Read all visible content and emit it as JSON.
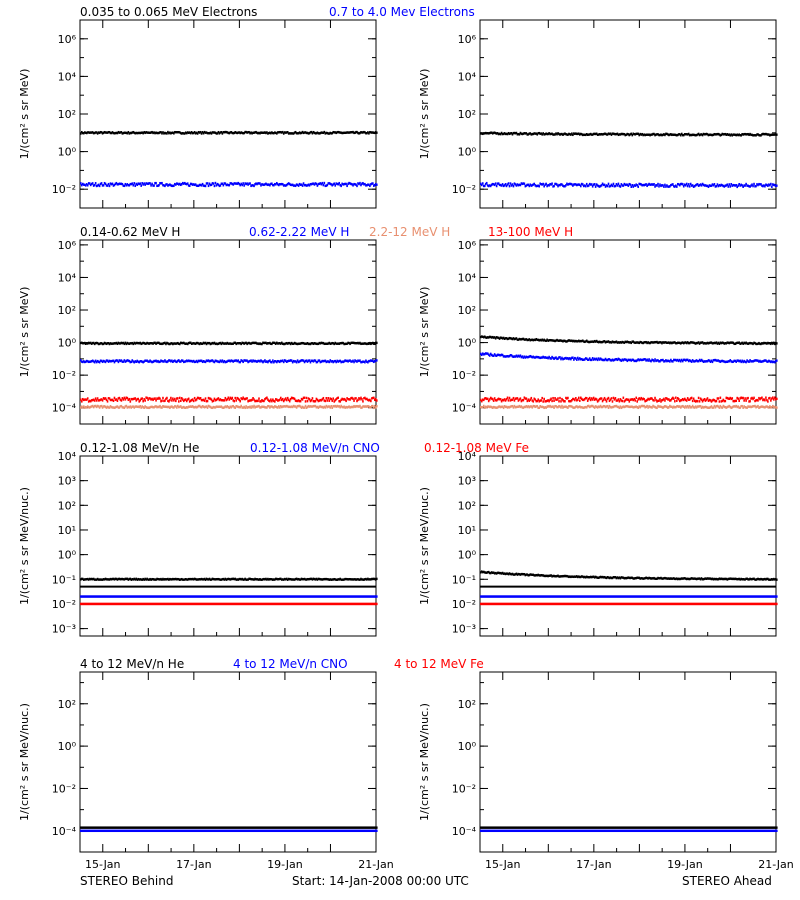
{
  "footer": {
    "left": "STEREO Behind",
    "center": "Start: 14-Jan-2008 00:00 UTC",
    "right": "STEREO Ahead"
  },
  "colors": {
    "black": "#000000",
    "blue": "#0000ff",
    "salmon": "#e89070",
    "red": "#ff0000"
  },
  "chart_data": [
    {
      "id": "electrons",
      "type": "scatter",
      "log_y": true,
      "ylim_exp": [
        -3,
        7
      ],
      "ylabel": "1/(cm² s sr MeV)",
      "yticks": [
        {
          "exp": -2,
          "label": "10⁻²"
        },
        {
          "exp": 0,
          "label": "10⁰"
        },
        {
          "exp": 2,
          "label": "10²"
        },
        {
          "exp": 4,
          "label": "10⁴"
        },
        {
          "exp": 6,
          "label": "10⁶"
        }
      ],
      "legend": [
        {
          "text": "0.035 to 0.065 MeV Electrons",
          "color": "#000000"
        },
        {
          "text": "0.7 to 4.0 Mev Electrons",
          "color": "#0000ff"
        }
      ],
      "series": [
        {
          "name": "0.035 to 0.065 MeV Electrons",
          "color": "#000000",
          "left": [
            1.0,
            1.0
          ],
          "right": [
            0.98,
            0.9
          ],
          "scatter": 0.04
        },
        {
          "name": "0.7 to 4.0 Mev Electrons",
          "color": "#0000ff",
          "left": [
            -1.75,
            -1.75
          ],
          "right": [
            -1.75,
            -1.8
          ],
          "scatter": 0.08
        }
      ]
    },
    {
      "id": "protons",
      "type": "scatter",
      "log_y": true,
      "ylim_exp": [
        -5,
        6.3
      ],
      "ylabel": "1/(cm² s sr MeV)",
      "yticks": [
        {
          "exp": -4,
          "label": "10⁻⁴"
        },
        {
          "exp": -2,
          "label": "10⁻²"
        },
        {
          "exp": 0,
          "label": "10⁰"
        },
        {
          "exp": 2,
          "label": "10²"
        },
        {
          "exp": 4,
          "label": "10⁴"
        },
        {
          "exp": 6,
          "label": "10⁶"
        }
      ],
      "legend": [
        {
          "text": "0.14-0.62 MeV H",
          "color": "#000000"
        },
        {
          "text": "0.62-2.22 MeV H",
          "color": "#0000ff"
        },
        {
          "text": "2.2-12 MeV H",
          "color": "#e89070"
        },
        {
          "text": "13-100 MeV H",
          "color": "#ff0000"
        }
      ],
      "series": [
        {
          "name": "0.14-0.62 MeV H",
          "color": "#000000",
          "left": [
            -0.05,
            -0.05
          ],
          "right": [
            0.35,
            -0.05
          ],
          "scatter": 0.04
        },
        {
          "name": "0.62-2.22 MeV H",
          "color": "#0000ff",
          "left": [
            -1.15,
            -1.15
          ],
          "right": [
            -0.7,
            -1.15
          ],
          "scatter": 0.06
        },
        {
          "name": "13-100 MeV H",
          "color": "#ff0000",
          "left": [
            -3.5,
            -3.5
          ],
          "right": [
            -3.5,
            -3.5
          ],
          "scatter": 0.12
        },
        {
          "name": "2.2-12 MeV H",
          "color": "#e89070",
          "left": [
            -3.95,
            -3.95
          ],
          "right": [
            -3.95,
            -3.95
          ],
          "scatter": 0.06
        }
      ]
    },
    {
      "id": "heavy-low",
      "type": "scatter",
      "log_y": true,
      "ylim_exp": [
        -3.3,
        4
      ],
      "ylabel": "1/(cm² s sr MeV/nuc.)",
      "yticks": [
        {
          "exp": -3,
          "label": "10⁻³"
        },
        {
          "exp": -2,
          "label": "10⁻²"
        },
        {
          "exp": -1,
          "label": "10⁻¹"
        },
        {
          "exp": 0,
          "label": "10⁰"
        },
        {
          "exp": 1,
          "label": "10¹"
        },
        {
          "exp": 2,
          "label": "10²"
        },
        {
          "exp": 3,
          "label": "10³"
        },
        {
          "exp": 4,
          "label": "10⁴"
        }
      ],
      "legend": [
        {
          "text": "0.12-1.08 MeV/n He",
          "color": "#000000"
        },
        {
          "text": "0.12-1.08 MeV/n CNO",
          "color": "#0000ff"
        },
        {
          "text": "0.12-1.08 MeV Fe",
          "color": "#ff0000"
        }
      ],
      "series": [
        {
          "name": "0.12-1.08 MeV/n He",
          "color": "#000000",
          "left": [
            -1.0,
            -1.0
          ],
          "right": [
            -0.7,
            -1.0
          ],
          "scatter": 0.02
        },
        {
          "name": "0.12-1.08 MeV/n CNO",
          "color": "#0000ff",
          "left": [
            -1.7,
            -1.7
          ],
          "right": [
            -1.7,
            -1.7
          ],
          "scatter": 0.0
        },
        {
          "name": "0.12-1.08 MeV Fe",
          "color": "#ff0000",
          "left": [
            -2.0,
            -2.0
          ],
          "right": [
            -2.0,
            -2.0
          ],
          "scatter": 0.0
        }
      ],
      "reference_line_exp": -1.3
    },
    {
      "id": "heavy-high",
      "type": "scatter",
      "log_y": true,
      "ylim_exp": [
        -5,
        3.5
      ],
      "ylabel": "1/(cm² s sr MeV/nuc.)",
      "yticks": [
        {
          "exp": -4,
          "label": "10⁻⁴"
        },
        {
          "exp": -2,
          "label": "10⁻²"
        },
        {
          "exp": 0,
          "label": "10⁰"
        },
        {
          "exp": 2,
          "label": "10²"
        }
      ],
      "legend": [
        {
          "text": "4 to 12 MeV/n He",
          "color": "#000000"
        },
        {
          "text": "4 to 12 MeV/n CNO",
          "color": "#0000ff"
        },
        {
          "text": "4 to 12 MeV Fe",
          "color": "#ff0000"
        }
      ],
      "series": [
        {
          "name": "4 to 12 MeV/n He",
          "color": "#000000",
          "left": [
            -3.85,
            -3.85
          ],
          "right": [
            -3.85,
            -3.85
          ],
          "scatter": 0.0
        },
        {
          "name": "4 to 12 MeV/n CNO",
          "color": "#0000ff",
          "left": [
            -4.0,
            -4.0
          ],
          "right": [
            -4.0,
            -4.0
          ],
          "scatter": 0.0
        }
      ]
    }
  ],
  "x_axis": {
    "xlim_days": [
      0.5,
      7.0
    ],
    "ticks": [
      {
        "day": 1,
        "label": "15-Jan"
      },
      {
        "day": 3,
        "label": "17-Jan"
      },
      {
        "day": 5,
        "label": "19-Jan"
      },
      {
        "day": 7,
        "label": "21-Jan"
      }
    ]
  }
}
